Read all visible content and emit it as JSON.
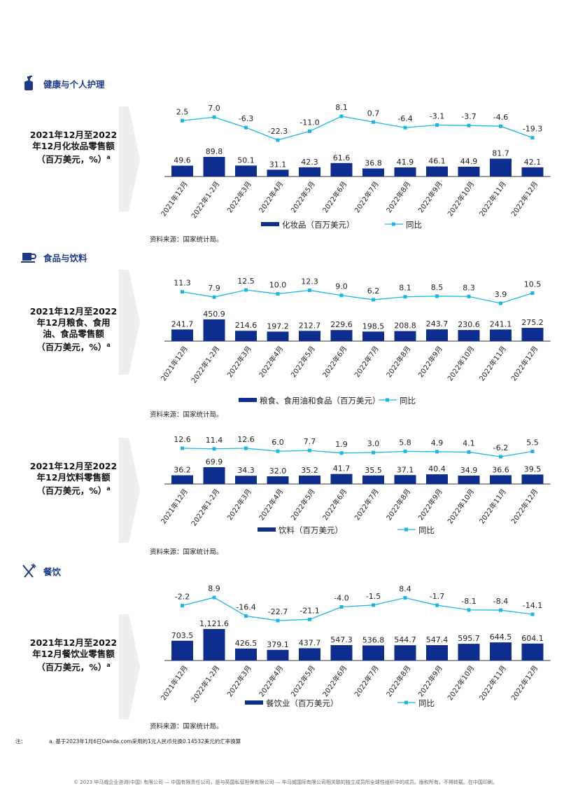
{
  "colors": {
    "bar": "#0d2e8e",
    "line": "#1ab7e6",
    "heading": "#1b3a8a",
    "chevron": "#eeeeee"
  },
  "sections": [
    {
      "name": "健康与个人护理",
      "icon": "perfume-bottle-icon"
    },
    {
      "name": "食品与饮料",
      "icon": "coffee-cup-icon"
    },
    {
      "name": "餐饮",
      "icon": "fork-knife-icon"
    }
  ],
  "charts": [
    {
      "title_lines": [
        "2021年12月至2022",
        "年12月化妆品零售额",
        "（百万美元，%）"
      ],
      "superscript": "a",
      "source": "资料来源：国家统计局。"
    },
    {
      "title_lines": [
        "2021年12月至2022",
        "年12月粮食、食用",
        "油、食品零售额",
        "（百万美元，%）"
      ],
      "superscript": "a",
      "source": "资料来源：国家统计局。"
    },
    {
      "title_lines": [
        "2021年12月至2022",
        "年12月饮料零售额",
        "（百万美元，%）"
      ],
      "superscript": "a",
      "source": "资料来源：国家统计局。"
    },
    {
      "title_lines": [
        "2021年12月至2022",
        "年12月餐饮业零售额",
        "（百万美元，%）"
      ],
      "superscript": "a",
      "source": "资料来源：国家统计局。"
    }
  ],
  "chart_data": [
    {
      "type": "bar",
      "categories": [
        "2021年12月",
        "2022年1-2月",
        "2022年3月",
        "2022年4月",
        "2022年5月",
        "2022年6月",
        "2022年7月",
        "2022年8月",
        "2022年9月",
        "2022年10月",
        "2022年11月",
        "2022年12月"
      ],
      "series": [
        {
          "name": "化妆品（百万美元）",
          "type": "bar",
          "values": [
            49.6,
            89.8,
            50.1,
            31.1,
            42.3,
            61.6,
            36.8,
            41.9,
            46.1,
            44.9,
            81.7,
            42.1
          ],
          "labels": [
            "49.6",
            "89.8",
            "50.1",
            "31.1",
            "42.3",
            "61.6",
            "36.8",
            "41.9",
            "46.1",
            "44.9",
            "81.7",
            "42.1"
          ]
        },
        {
          "name": "同比",
          "type": "line",
          "values": [
            2.5,
            7.0,
            -6.3,
            -22.3,
            -11.0,
            8.1,
            0.7,
            -6.4,
            -3.1,
            -3.7,
            -4.6,
            -19.3
          ],
          "labels": [
            "2.5",
            "7.0",
            "-6.3",
            "-22.3",
            "-11.0",
            "8.1",
            "0.7",
            "-6.4",
            "-3.1",
            "-3.7",
            "-4.6",
            "-19.3"
          ]
        }
      ],
      "legend_position": "bottom"
    },
    {
      "type": "bar",
      "categories": [
        "2021年12月",
        "2022年1-2月",
        "2022年3月",
        "2022年4月",
        "2022年5月",
        "2022年6月",
        "2022年7月",
        "2022年8月",
        "2022年9月",
        "2022年10月",
        "2022年11月",
        "2022年12月"
      ],
      "series": [
        {
          "name": "粮食、食用油和食品（百万美元）",
          "type": "bar",
          "values": [
            241.7,
            450.9,
            214.6,
            197.2,
            212.7,
            229.6,
            198.5,
            208.8,
            243.7,
            230.6,
            241.1,
            275.2
          ],
          "labels": [
            "241.7",
            "450.9",
            "214.6",
            "197.2",
            "212.7",
            "229.6",
            "198.5",
            "208.8",
            "243.7",
            "230.6",
            "241.1",
            "275.2"
          ]
        },
        {
          "name": "同比",
          "type": "line",
          "values": [
            11.3,
            7.9,
            12.5,
            10.0,
            12.3,
            9.0,
            6.2,
            8.1,
            8.5,
            8.3,
            3.9,
            10.5
          ],
          "labels": [
            "11.3",
            "7.9",
            "12.5",
            "10.0",
            "12.3",
            "9.0",
            "6.2",
            "8.1",
            "8.5",
            "8.3",
            "3.9",
            "10.5"
          ]
        }
      ],
      "legend_position": "bottom"
    },
    {
      "type": "bar",
      "categories": [
        "2021年12月",
        "2022年1-2月",
        "2022年3月",
        "2022年4月",
        "2022年5月",
        "2022年6月",
        "2022年7月",
        "2022年8月",
        "2022年9月",
        "2022年10月",
        "2022年11月",
        "2022年12月"
      ],
      "series": [
        {
          "name": "饮料（百万美元）",
          "type": "bar",
          "values": [
            36.2,
            69.9,
            34.3,
            32.0,
            35.2,
            41.7,
            35.5,
            37.1,
            40.4,
            34.9,
            36.6,
            39.5
          ],
          "labels": [
            "36.2",
            "69.9",
            "34.3",
            "32.0",
            "35.2",
            "41.7",
            "35.5",
            "37.1",
            "40.4",
            "34.9",
            "36.6",
            "39.5"
          ]
        },
        {
          "name": "同比",
          "type": "line",
          "values": [
            12.6,
            11.4,
            12.6,
            6.0,
            7.7,
            1.9,
            3.0,
            5.8,
            4.9,
            4.1,
            -6.2,
            5.5
          ],
          "labels": [
            "12.6",
            "11.4",
            "12.6",
            "6.0",
            "7.7",
            "1.9",
            "3.0",
            "5.8",
            "4.9",
            "4.1",
            "-6.2",
            "5.5"
          ]
        }
      ],
      "legend_position": "bottom"
    },
    {
      "type": "bar",
      "categories": [
        "2021年12月",
        "2022年1-2月",
        "2022年3月",
        "2022年4月",
        "2022年5月",
        "2022年6月",
        "2022年7月",
        "2022年8月",
        "2022年9月",
        "2022年10月",
        "2022年11月",
        "2022年12月"
      ],
      "series": [
        {
          "name": "餐饮业（百万美元）",
          "type": "bar",
          "values": [
            703.5,
            1121.6,
            426.5,
            379.1,
            437.7,
            547.3,
            536.8,
            544.7,
            547.4,
            595.7,
            644.5,
            604.1
          ],
          "labels": [
            "703.5",
            "1,121.6",
            "426.5",
            "379.1",
            "437.7",
            "547.3",
            "536.8",
            "544.7",
            "547.4",
            "595.7",
            "644.5",
            "604.1"
          ]
        },
        {
          "name": "同比",
          "type": "line",
          "values": [
            -2.2,
            8.9,
            -16.4,
            -22.7,
            -21.1,
            -4.0,
            -1.5,
            8.4,
            -1.7,
            -8.1,
            -8.4,
            -14.1
          ],
          "labels": [
            "-2.2",
            "8.9",
            "-16.4",
            "-22.7",
            "-21.1",
            "-4.0",
            "-1.5",
            "8.4",
            "-1.7",
            "-8.1",
            "-8.4",
            "-14.1"
          ]
        }
      ],
      "legend_position": "bottom"
    }
  ],
  "note": {
    "label": "注：",
    "text": "a. 基于2023年1月6日Oanda.com采用的1元人民币兑换0.14532美元的汇率换算"
  },
  "footer": "© 2023 毕马威企业咨询(中国) 有限公司 — 中国有限责任公司，是与英国私营担保有限公司 — 毕马威国际有限公司相关联的独立成员所全球性组织中的成员。版权所有，不得转载。在中国印刷。"
}
